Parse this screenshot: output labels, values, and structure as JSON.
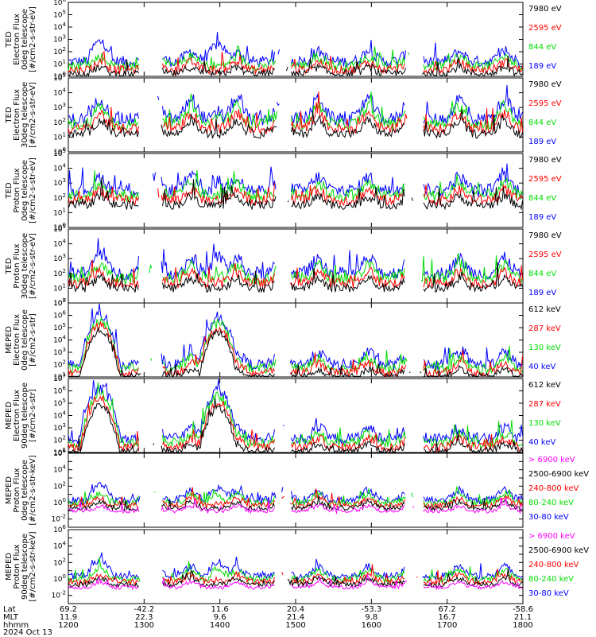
{
  "footer": {
    "row_labels": [
      "Lat",
      "MLT",
      "hhmm"
    ],
    "date": "2024 Oct 13",
    "columns": [
      {
        "lat": "69.2",
        "mlt": "11.9",
        "hhmm": "1200"
      },
      {
        "lat": "-42.2",
        "mlt": "22.3",
        "hhmm": "1300"
      },
      {
        "lat": "11.6",
        "mlt": "9.6",
        "hhmm": "1400"
      },
      {
        "lat": "20.4",
        "mlt": "21.4",
        "hhmm": "1500"
      },
      {
        "lat": "-53.3",
        "mlt": "9.8",
        "hhmm": "1600"
      },
      {
        "lat": "67.2",
        "mlt": "16.7",
        "hhmm": "1700"
      },
      {
        "lat": "-58.6",
        "mlt": "21.1",
        "hhmm": "1800"
      }
    ]
  },
  "colors": {
    "blue": "#0000ff",
    "red": "#ff0000",
    "green": "#00dd00",
    "black": "#000000",
    "magenta": "#ff00ff"
  },
  "chart_data": [
    {
      "type": "line",
      "ylabel": [
        "TED",
        "Electron Flux",
        "0deg telescope",
        "[#/cm2-s-str-eV]"
      ],
      "yscale": "log",
      "ylim_exp": [
        0,
        6
      ],
      "series": [
        {
          "name": "7980 eV",
          "color": "#000000"
        },
        {
          "name": "2595 eV",
          "color": "#ff0000"
        },
        {
          "name": "844 eV",
          "color": "#00dd00"
        },
        {
          "name": "189 eV",
          "color": "#0000ff"
        }
      ],
      "profile": {
        "peaks": [
          2.8,
          0,
          0,
          0,
          0,
          0
        ],
        "base": 1.2,
        "high": 2.0
      }
    },
    {
      "type": "line",
      "ylabel": [
        "TED",
        "Electron Flux",
        "30deg telescope",
        "[#/cm2-s-str-eV]"
      ],
      "yscale": "log",
      "ylim_exp": [
        0,
        5
      ],
      "series": [
        {
          "name": "7980 eV",
          "color": "#000000"
        },
        {
          "name": "2595 eV",
          "color": "#ff0000"
        },
        {
          "name": "844 eV",
          "color": "#00dd00"
        },
        {
          "name": "189 eV",
          "color": "#0000ff"
        }
      ],
      "profile": {
        "peaks": [
          2.8,
          2.8,
          0,
          0,
          0,
          0
        ],
        "base": 2.2,
        "high": 3.6
      }
    },
    {
      "type": "line",
      "ylabel": [
        "TED",
        "Proton Flux",
        "0deg telescope",
        "[#/cm2-s-str-eV]"
      ],
      "yscale": "log",
      "ylim_exp": [
        0,
        5
      ],
      "series": [
        {
          "name": "7980 eV",
          "color": "#000000"
        },
        {
          "name": "2595 eV",
          "color": "#ff0000"
        },
        {
          "name": "844 eV",
          "color": "#00dd00"
        },
        {
          "name": "189 eV",
          "color": "#0000ff"
        }
      ],
      "profile": {
        "peaks": [
          3.3,
          2.2,
          0,
          0,
          0,
          0
        ],
        "base": 2.5,
        "high": 3.4
      }
    },
    {
      "type": "line",
      "ylabel": [
        "TED",
        "Proton Flux",
        "30deg telescope",
        "[#/cm2-s-str-eV]"
      ],
      "yscale": "log",
      "ylim_exp": [
        0,
        5
      ],
      "series": [
        {
          "name": "7980 eV",
          "color": "#000000"
        },
        {
          "name": "2595 eV",
          "color": "#ff0000"
        },
        {
          "name": "844 eV",
          "color": "#00dd00"
        },
        {
          "name": "189 eV",
          "color": "#0000ff"
        }
      ],
      "profile": {
        "peaks": [
          3.3,
          2.5,
          0,
          0,
          0,
          0
        ],
        "base": 2.0,
        "high": 3.0
      }
    },
    {
      "type": "line",
      "ylabel": [
        "MEPED",
        "Electron Flux",
        "0deg telescope",
        "[#/cm2-s-str]"
      ],
      "yscale": "log",
      "ylim_exp": [
        1,
        7
      ],
      "series": [
        {
          "name": "612 keV",
          "color": "#000000"
        },
        {
          "name": "287 keV",
          "color": "#ff0000"
        },
        {
          "name": "130 keV",
          "color": "#00dd00"
        },
        {
          "name": "40 keV",
          "color": "#0000ff"
        }
      ],
      "profile": {
        "peaks": [
          6.0,
          5.7,
          5.5,
          5.3,
          0,
          0
        ],
        "base": 2.0,
        "high": 3.0
      }
    },
    {
      "type": "line",
      "ylabel": [
        "MEPED",
        "Electron Flux",
        "90deg telescope",
        "[#/cm2-s-str]"
      ],
      "yscale": "log",
      "ylim_exp": [
        1,
        7
      ],
      "series": [
        {
          "name": "612 keV",
          "color": "#000000"
        },
        {
          "name": "287 keV",
          "color": "#ff0000"
        },
        {
          "name": "130 keV",
          "color": "#00dd00"
        },
        {
          "name": "40 keV",
          "color": "#0000ff"
        }
      ],
      "profile": {
        "peaks": [
          6.2,
          5.9,
          5.6,
          5.3,
          0,
          0
        ],
        "base": 2.1,
        "high": 3.0
      }
    },
    {
      "type": "line",
      "ylabel": [
        "MEPED",
        "Proton Flux",
        "0deg telescope",
        "[#/cm2-s-str-keV]"
      ],
      "yscale": "log",
      "ylim_exp": [
        -3,
        6
      ],
      "series": [
        {
          "name": "> 6900 keV",
          "color": "#ff00ff"
        },
        {
          "name": "2500-6900 keV",
          "color": "#000000"
        },
        {
          "name": "240-800 keV",
          "color": "#ff0000"
        },
        {
          "name": "80-240 keV",
          "color": "#00dd00"
        },
        {
          "name": "30-80 keV",
          "color": "#0000ff"
        }
      ],
      "profile": {
        "peaks": [
          2.0,
          1.2,
          0.5,
          0.0,
          -1.5,
          0
        ],
        "base": 0.3,
        "high": 1.5
      }
    },
    {
      "type": "line",
      "ylabel": [
        "MEPED",
        "Proton Flux",
        "90deg telescope",
        "[#/cm2-s-str-keV]"
      ],
      "yscale": "log",
      "ylim_exp": [
        -3,
        6
      ],
      "series": [
        {
          "name": "> 6900 keV",
          "color": "#ff00ff"
        },
        {
          "name": "2500-6900 keV",
          "color": "#000000"
        },
        {
          "name": "240-800 keV",
          "color": "#ff0000"
        },
        {
          "name": "80-240 keV",
          "color": "#00dd00"
        },
        {
          "name": "30-80 keV",
          "color": "#0000ff"
        }
      ],
      "profile": {
        "peaks": [
          2.2,
          1.5,
          0.5,
          0.0,
          -1.5,
          0
        ],
        "base": 0.3,
        "high": 1.5
      }
    }
  ]
}
